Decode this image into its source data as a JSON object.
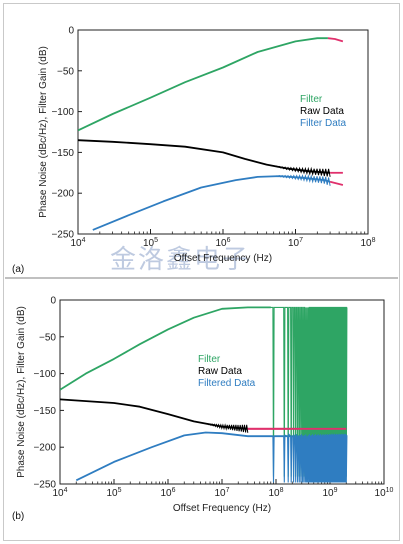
{
  "watermark": "金洛鑫电子",
  "chart_data": [
    {
      "panel_label": "(a)",
      "type": "line",
      "xlabel": "Offset Frequency (Hz)",
      "ylabel": "Phase Noise (dBc/Hz), Filter Gain (dB)",
      "x_scale": "log",
      "xlim": [
        10000,
        100000000
      ],
      "ylim": [
        -250,
        0
      ],
      "x_tick_exponents": [
        4,
        5,
        6,
        7,
        8
      ],
      "y_ticks": [
        0,
        -50,
        -100,
        -150,
        -200,
        -250
      ],
      "legend": {
        "placement": "right",
        "entries": [
          {
            "label": "Filter",
            "color": "#2ea564"
          },
          {
            "label": "Raw Data",
            "color": "#000000"
          },
          {
            "label": "Filter Data",
            "color": "#2f7dc1"
          }
        ]
      },
      "series": [
        {
          "name": "Filter",
          "color": "#2ea564",
          "x": [
            10000,
            30000,
            100000,
            300000,
            1000000,
            3000000,
            10000000,
            20000000,
            28000000
          ],
          "y": [
            -123,
            -103,
            -83,
            -64,
            -46,
            -27,
            -14,
            -10,
            -10
          ]
        },
        {
          "color": "#e0306c",
          "x": [
            28000000,
            35000000,
            45000000
          ],
          "y": [
            -10,
            -11,
            -14
          ]
        },
        {
          "name": "Raw Data",
          "color": "#000000",
          "x": [
            10000,
            30000,
            100000,
            300000,
            1000000,
            2000000,
            4000000,
            8000000,
            15000000,
            30000000
          ],
          "y": [
            -135,
            -137,
            -140,
            -143,
            -150,
            -158,
            -165,
            -170,
            -173,
            -175
          ]
        },
        {
          "color": "#e0306c",
          "x": [
            30000000,
            45000000
          ],
          "y": [
            -175,
            -175
          ]
        },
        {
          "name": "Filter Data",
          "color": "#2f7dc1",
          "x": [
            16000,
            50000,
            150000,
            500000,
            1500000,
            3000000,
            6000000,
            12000000,
            25000000,
            30000000
          ],
          "y": [
            -245,
            -227,
            -210,
            -193,
            -184,
            -180,
            -179,
            -181,
            -184,
            -186
          ]
        },
        {
          "color": "#e0306c",
          "x": [
            30000000,
            45000000
          ],
          "y": [
            -186,
            -190
          ]
        }
      ]
    },
    {
      "panel_label": "(b)",
      "type": "line",
      "xlabel": "Offset Frequency (Hz)",
      "ylabel": "Phase Noise (dBc/Hz), Filter Gain (dB)",
      "x_scale": "log",
      "xlim": [
        10000,
        10000000000
      ],
      "ylim": [
        -250,
        0
      ],
      "x_tick_exponents": [
        4,
        5,
        6,
        7,
        8,
        9,
        10
      ],
      "y_ticks": [
        0,
        -50,
        -100,
        -150,
        -200,
        -250
      ],
      "legend": {
        "placement": "center",
        "entries": [
          {
            "label": "Filter",
            "color": "#2ea564"
          },
          {
            "label": "Raw Data",
            "color": "#000000"
          },
          {
            "label": "Filtered Data",
            "color": "#2f7dc1"
          }
        ]
      },
      "series": [
        {
          "name": "Filter",
          "color": "#2ea564",
          "x": [
            10000,
            30000,
            100000,
            300000,
            1000000,
            3000000,
            10000000,
            30000000,
            80000000
          ],
          "y": [
            -122,
            -100,
            -80,
            -60,
            -40,
            -24,
            -12,
            -10,
            -10
          ]
        },
        {
          "name": "Raw Data",
          "color": "#000000",
          "x": [
            10000,
            100000,
            300000,
            1000000,
            3000000,
            10000000,
            30000000
          ],
          "y": [
            -135,
            -140,
            -145,
            -155,
            -165,
            -172,
            -175
          ]
        },
        {
          "color": "#e0306c",
          "x": [
            30000000,
            2000000000
          ],
          "y": [
            -175,
            -175
          ]
        },
        {
          "name": "Filtered Data",
          "color": "#2f7dc1",
          "x": [
            20000,
            100000,
            500000,
            2000000,
            5000000,
            10000000,
            30000000,
            80000000,
            2000000000
          ],
          "y": [
            -245,
            -220,
            -200,
            -184,
            -180,
            -181,
            -185,
            -185,
            -185
          ]
        }
      ],
      "oscillation_start_hz": 90000000,
      "oscillation_end_hz": 2000000000
    }
  ]
}
